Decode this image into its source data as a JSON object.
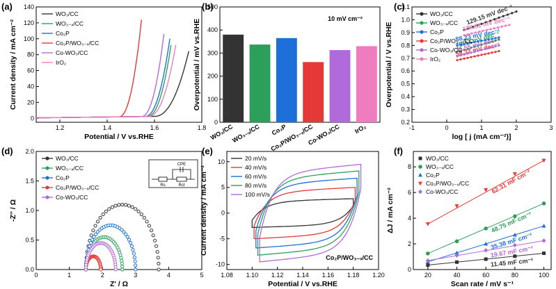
{
  "colors": {
    "WO3": "#333333",
    "WO3x": "#2ca05a",
    "Co2P": "#1e6fd9",
    "Co2PWO3x": "#e53935",
    "CoWO3": "#b06ad9",
    "IrO2": "#f07cc0"
  },
  "chart_data": [
    {
      "id": "a",
      "panel_label": "(a)",
      "type": "line",
      "xlabel": "Potential / V vs.RHE",
      "ylabel": "Current density / mA cm⁻²",
      "xlim": [
        1.1,
        1.8
      ],
      "ylim": [
        -5,
        140
      ],
      "xticks": [
        "1.2",
        "1.4",
        "1.6",
        "1.8"
      ],
      "xtick_values": [
        1.2,
        1.4,
        1.6,
        1.8
      ],
      "yticks": [
        "0",
        "20",
        "40",
        "60",
        "80",
        "100",
        "120",
        "140"
      ],
      "ytick_values": [
        0,
        20,
        40,
        60,
        80,
        100,
        120,
        140
      ],
      "series": [
        {
          "name": "WO₃/CC",
          "color_key": "WO3",
          "onset": 1.6,
          "end_x": 1.745,
          "end_y": 84
        },
        {
          "name": "WO₃₋ₓ/CC",
          "color_key": "WO3x",
          "onset": 1.57,
          "end_x": 1.67,
          "end_y": 92
        },
        {
          "name": "Co₂P",
          "color_key": "Co2P",
          "onset": 1.56,
          "end_x": 1.665,
          "end_y": 100
        },
        {
          "name": "Co₂P/WO₃₋ₓ/CC",
          "color_key": "Co2PWO3x",
          "onset": 1.45,
          "end_x": 1.545,
          "end_y": 124
        },
        {
          "name": "Co-WO₃/CC",
          "color_key": "CoWO3",
          "onset": 1.545,
          "end_x": 1.64,
          "end_y": 106
        },
        {
          "name": "IrO₂",
          "color_key": "IrO2",
          "onset": 1.575,
          "end_x": 1.69,
          "end_y": 92
        }
      ]
    },
    {
      "id": "b",
      "panel_label": "(b)",
      "type": "bar",
      "annotation": "10 mV cm⁻²",
      "ylabel": "Overpotential / mV vs.RHE",
      "ylim": [
        0,
        500
      ],
      "yticks": [
        "0",
        "100",
        "200",
        "300",
        "400",
        "500"
      ],
      "ytick_values": [
        0,
        100,
        200,
        300,
        400,
        500
      ],
      "categories": [
        "WO₃/CC",
        "WO₃₋ₓ/CC",
        "Co₂P",
        "Co₂P/WO₃₋ₓ/CC",
        "Co-WO₃/CC",
        "IrO₂"
      ],
      "values": [
        380,
        337,
        365,
        261,
        313,
        330
      ],
      "color_keys": [
        "WO3",
        "WO3x",
        "Co2P",
        "Co2PWO3x",
        "CoWO3",
        "IrO2"
      ]
    },
    {
      "id": "c",
      "panel_label": "(c)",
      "type": "scatter",
      "xlabel": "log [ j (mA cm⁻²)]",
      "ylabel": "Overpotential / V vs.RHE",
      "xlim": [
        -1,
        3
      ],
      "ylim": [
        0.2,
        1.1
      ],
      "xticks": [
        "-1",
        "0",
        "1",
        "2",
        "3"
      ],
      "xtick_values": [
        -1,
        0,
        1,
        2,
        3
      ],
      "yticks": [
        "0.2",
        "0.3",
        "0.4",
        "0.5",
        "0.6",
        "0.7",
        "0.8",
        "0.9",
        "1.0",
        "1.1"
      ],
      "ytick_values": [
        0.2,
        0.3,
        0.4,
        0.5,
        0.6,
        0.7,
        0.8,
        0.9,
        1.0,
        1.1
      ],
      "series": [
        {
          "name": "WO₃/CC",
          "color_key": "WO3",
          "x0": 0.5,
          "x1": 2.0,
          "y0": 0.92,
          "y1": 1.064,
          "label": "129.15 mV dec⁻¹"
        },
        {
          "name": "WO₃₋ₓ/CC",
          "color_key": "WO3x",
          "x0": 0.3,
          "x1": 1.5,
          "y0": 0.75,
          "y1": 0.845,
          "label": "79.47 mV dec⁻¹"
        },
        {
          "name": "Co₂P",
          "color_key": "Co2P",
          "x0": 0.3,
          "x1": 1.5,
          "y0": 0.8,
          "y1": 0.862,
          "label": "88.23 mV dec⁻¹"
        },
        {
          "name": "Co₂P/WO₃₋ₓ/CC",
          "color_key": "Co2PWO3x",
          "x0": 0.3,
          "x1": 1.5,
          "y0": 0.685,
          "y1": 0.755,
          "label": "58.32 mV dec⁻¹"
        },
        {
          "name": "Co-WO₃/CC",
          "color_key": "CoWO3",
          "x0": 0.3,
          "x1": 1.5,
          "y0": 0.715,
          "y1": 0.8,
          "label": "71.55 mV dec⁻¹"
        },
        {
          "name": "IrO₂",
          "color_key": "IrO2",
          "x0": 0.5,
          "x1": 1.8,
          "y0": 0.88,
          "y1": 0.96,
          "label": "106.81 mV dec⁻¹"
        }
      ]
    },
    {
      "id": "d",
      "panel_label": "(d)",
      "type": "scatter",
      "xlabel": "Z' / Ω",
      "ylabel": "-Z'' / Ω",
      "xlim": [
        0,
        5
      ],
      "ylim": [
        0,
        2.0
      ],
      "xticks": [
        "0",
        "1",
        "2",
        "3",
        "4",
        "5"
      ],
      "xtick_values": [
        0,
        1,
        2,
        3,
        4,
        5
      ],
      "yticks": [
        "0.0",
        "0.5",
        "1.0",
        "1.5",
        "2.0"
      ],
      "ytick_values": [
        0,
        0.5,
        1.0,
        1.5,
        2.0
      ],
      "circuit_labels": [
        "CPE",
        "Rs",
        "Rct"
      ],
      "series": [
        {
          "name": "WO₃/CC",
          "color_key": "WO3",
          "rs": 1.5,
          "rct": 2.2
        },
        {
          "name": "WO₃₋ₓ/CC",
          "color_key": "WO3x",
          "rs": 1.5,
          "rct": 1.1
        },
        {
          "name": "Co₂P",
          "color_key": "Co2P",
          "rs": 1.5,
          "rct": 1.5
        },
        {
          "name": "Co₂P/WO₃₋ₓ/CC",
          "color_key": "Co2PWO3x",
          "rs": 1.5,
          "rct": 0.45
        },
        {
          "name": "Co-WO₃/CC",
          "color_key": "CoWO3",
          "rs": 1.5,
          "rct": 0.9
        }
      ]
    },
    {
      "id": "e",
      "panel_label": "(e)",
      "type": "line",
      "xlabel": "Potential / V vs.RHE",
      "ylabel": "Current density / mA cm⁻²",
      "annotation": "Co₂P/WO₃₋ₓ/CC",
      "xlim": [
        1.08,
        1.2
      ],
      "ylim": [
        -11,
        12
      ],
      "xticks": [
        "1.08",
        "1.10",
        "1.12",
        "1.14",
        "1.16",
        "1.18",
        "1.20"
      ],
      "xtick_values": [
        1.08,
        1.1,
        1.12,
        1.14,
        1.16,
        1.18,
        1.2
      ],
      "yticks": [
        "-10",
        "-5",
        "0",
        "5",
        "10"
      ],
      "ytick_values": [
        -10,
        -5,
        0,
        5,
        10
      ],
      "series": [
        {
          "name": "20 mV/s",
          "color": "#333333",
          "amp": 2.8
        },
        {
          "name": "40 mV/s",
          "color": "#e53935",
          "amp": 5.0
        },
        {
          "name": "60 mV/s",
          "color": "#1e6fd9",
          "amp": 6.8
        },
        {
          "name": "80 mV/s",
          "color": "#2ca05a",
          "amp": 8.2
        },
        {
          "name": "100 mV/s",
          "color": "#b06ad9",
          "amp": 9.5
        }
      ]
    },
    {
      "id": "f",
      "panel_label": "(f)",
      "type": "scatter",
      "xlabel": "Scan rate / mV s⁻¹",
      "ylabel": "ΔJ / mA cm⁻²",
      "xlim": [
        10,
        105
      ],
      "ylim": [
        0,
        9.2
      ],
      "xticks": [
        "20",
        "40",
        "60",
        "80",
        "100"
      ],
      "xtick_values": [
        20,
        40,
        60,
        80,
        100
      ],
      "yticks": [
        "0",
        "2",
        "4",
        "6",
        "8"
      ],
      "ytick_values": [
        0,
        2,
        4,
        6,
        8
      ],
      "x": [
        20,
        40,
        60,
        80,
        100
      ],
      "series": [
        {
          "name": "WO₃/CC",
          "color_key": "WO3",
          "marker": "square",
          "values": [
            0.35,
            0.58,
            0.81,
            1.04,
            1.27
          ],
          "label": "11.45 mF cm⁻²"
        },
        {
          "name": "WO₃₋ₓ/CC",
          "color_key": "WO3x",
          "marker": "circle",
          "values": [
            1.25,
            2.2,
            3.2,
            4.15,
            5.15
          ],
          "label": "48.75 mF cm⁻²"
        },
        {
          "name": "Co₂P",
          "color_key": "Co2P",
          "marker": "triangle",
          "values": [
            0.6,
            1.3,
            2.0,
            2.7,
            3.4
          ],
          "label": "35.38 mF cm⁻²"
        },
        {
          "name": "Co₂P/WO₃₋ₓ/CC",
          "color_key": "Co2PWO3x",
          "marker": "triangle-down",
          "values": [
            3.55,
            4.95,
            6.2,
            7.45,
            8.5
          ],
          "label": "62.31 mF cm⁻²"
        },
        {
          "name": "Co-WO₃/CC",
          "color_key": "CoWO3",
          "marker": "diamond",
          "values": [
            0.7,
            1.1,
            1.5,
            1.9,
            2.25
          ],
          "label": "19.67 mF cm⁻²"
        }
      ]
    }
  ]
}
